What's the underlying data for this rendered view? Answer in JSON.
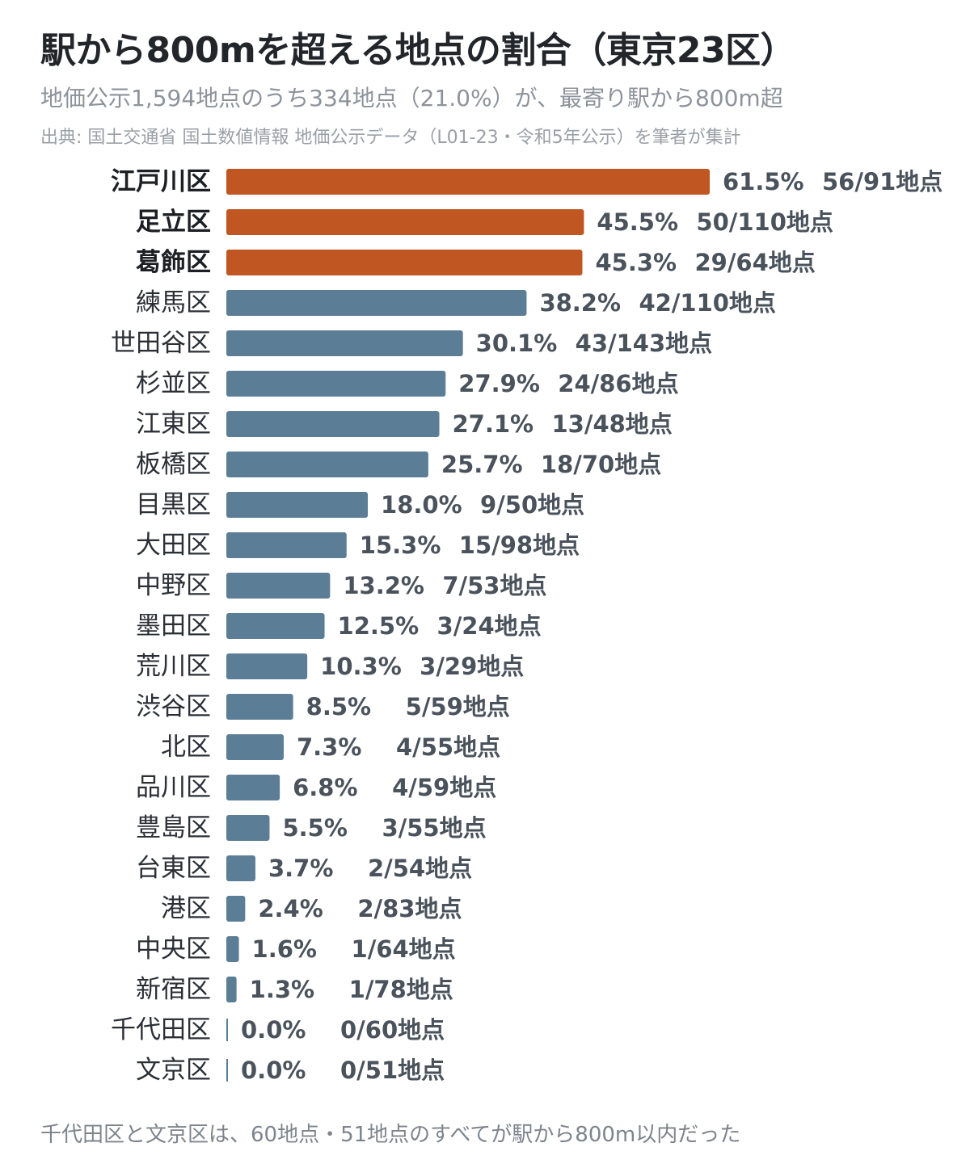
{
  "title": "駅から800mを超える地点の割合（東京23区）",
  "subtitle": "地価公示1,594地点のうち334地点（21.0%）が、最寄り駅から800m超",
  "source": "出典: 国土交通省 国土数値情報 地価公示データ（L01-23・令和5年公示）を筆者が集計",
  "footnote": "千代田区と文京区は、60地点・51地点のすべてが駅から800m以内だった",
  "colors": {
    "highlight": "#c05621",
    "default": "#5c7d96"
  },
  "chart_data": {
    "type": "bar",
    "orientation": "horizontal",
    "xlim": [
      0,
      61.5
    ],
    "grid": false,
    "legend": "none",
    "unit": "%",
    "categories": [
      "江戸川区",
      "足立区",
      "葛飾区",
      "練馬区",
      "世田谷区",
      "杉並区",
      "江東区",
      "板橋区",
      "目黒区",
      "大田区",
      "中野区",
      "墨田区",
      "荒川区",
      "渋谷区",
      "北区",
      "品川区",
      "豊島区",
      "台東区",
      "港区",
      "中央区",
      "新宿区",
      "千代田区",
      "文京区"
    ],
    "values": [
      61.5,
      45.5,
      45.3,
      38.2,
      30.1,
      27.9,
      27.1,
      25.7,
      18.0,
      15.3,
      13.2,
      12.5,
      10.3,
      8.5,
      7.3,
      6.8,
      5.5,
      3.7,
      2.4,
      1.6,
      1.3,
      0.0,
      0.0
    ],
    "value_labels": [
      "61.5%",
      "45.5%",
      "45.3%",
      "38.2%",
      "30.1%",
      "27.9%",
      "27.1%",
      "25.7%",
      "18.0%",
      "15.3%",
      "13.2%",
      "12.5%",
      "10.3%",
      "8.5%",
      "7.3%",
      "6.8%",
      "5.5%",
      "3.7%",
      "2.4%",
      "1.6%",
      "1.3%",
      "0.0%",
      "0.0%"
    ],
    "count_labels": [
      "56/91地点",
      "50/110地点",
      "29/64地点",
      "42/110地点",
      "43/143地点",
      "24/86地点",
      "13/48地点",
      "18/70地点",
      "9/50地点",
      "15/98地点",
      "7/53地点",
      "3/24地点",
      "3/29地点",
      "5/59地点",
      "4/55地点",
      "4/59地点",
      "3/55地点",
      "2/54地点",
      "2/83地点",
      "1/64地点",
      "1/78地点",
      "0/60地点",
      "0/51地点"
    ],
    "highlighted": [
      "江戸川区",
      "足立区",
      "葛飾区"
    ]
  }
}
